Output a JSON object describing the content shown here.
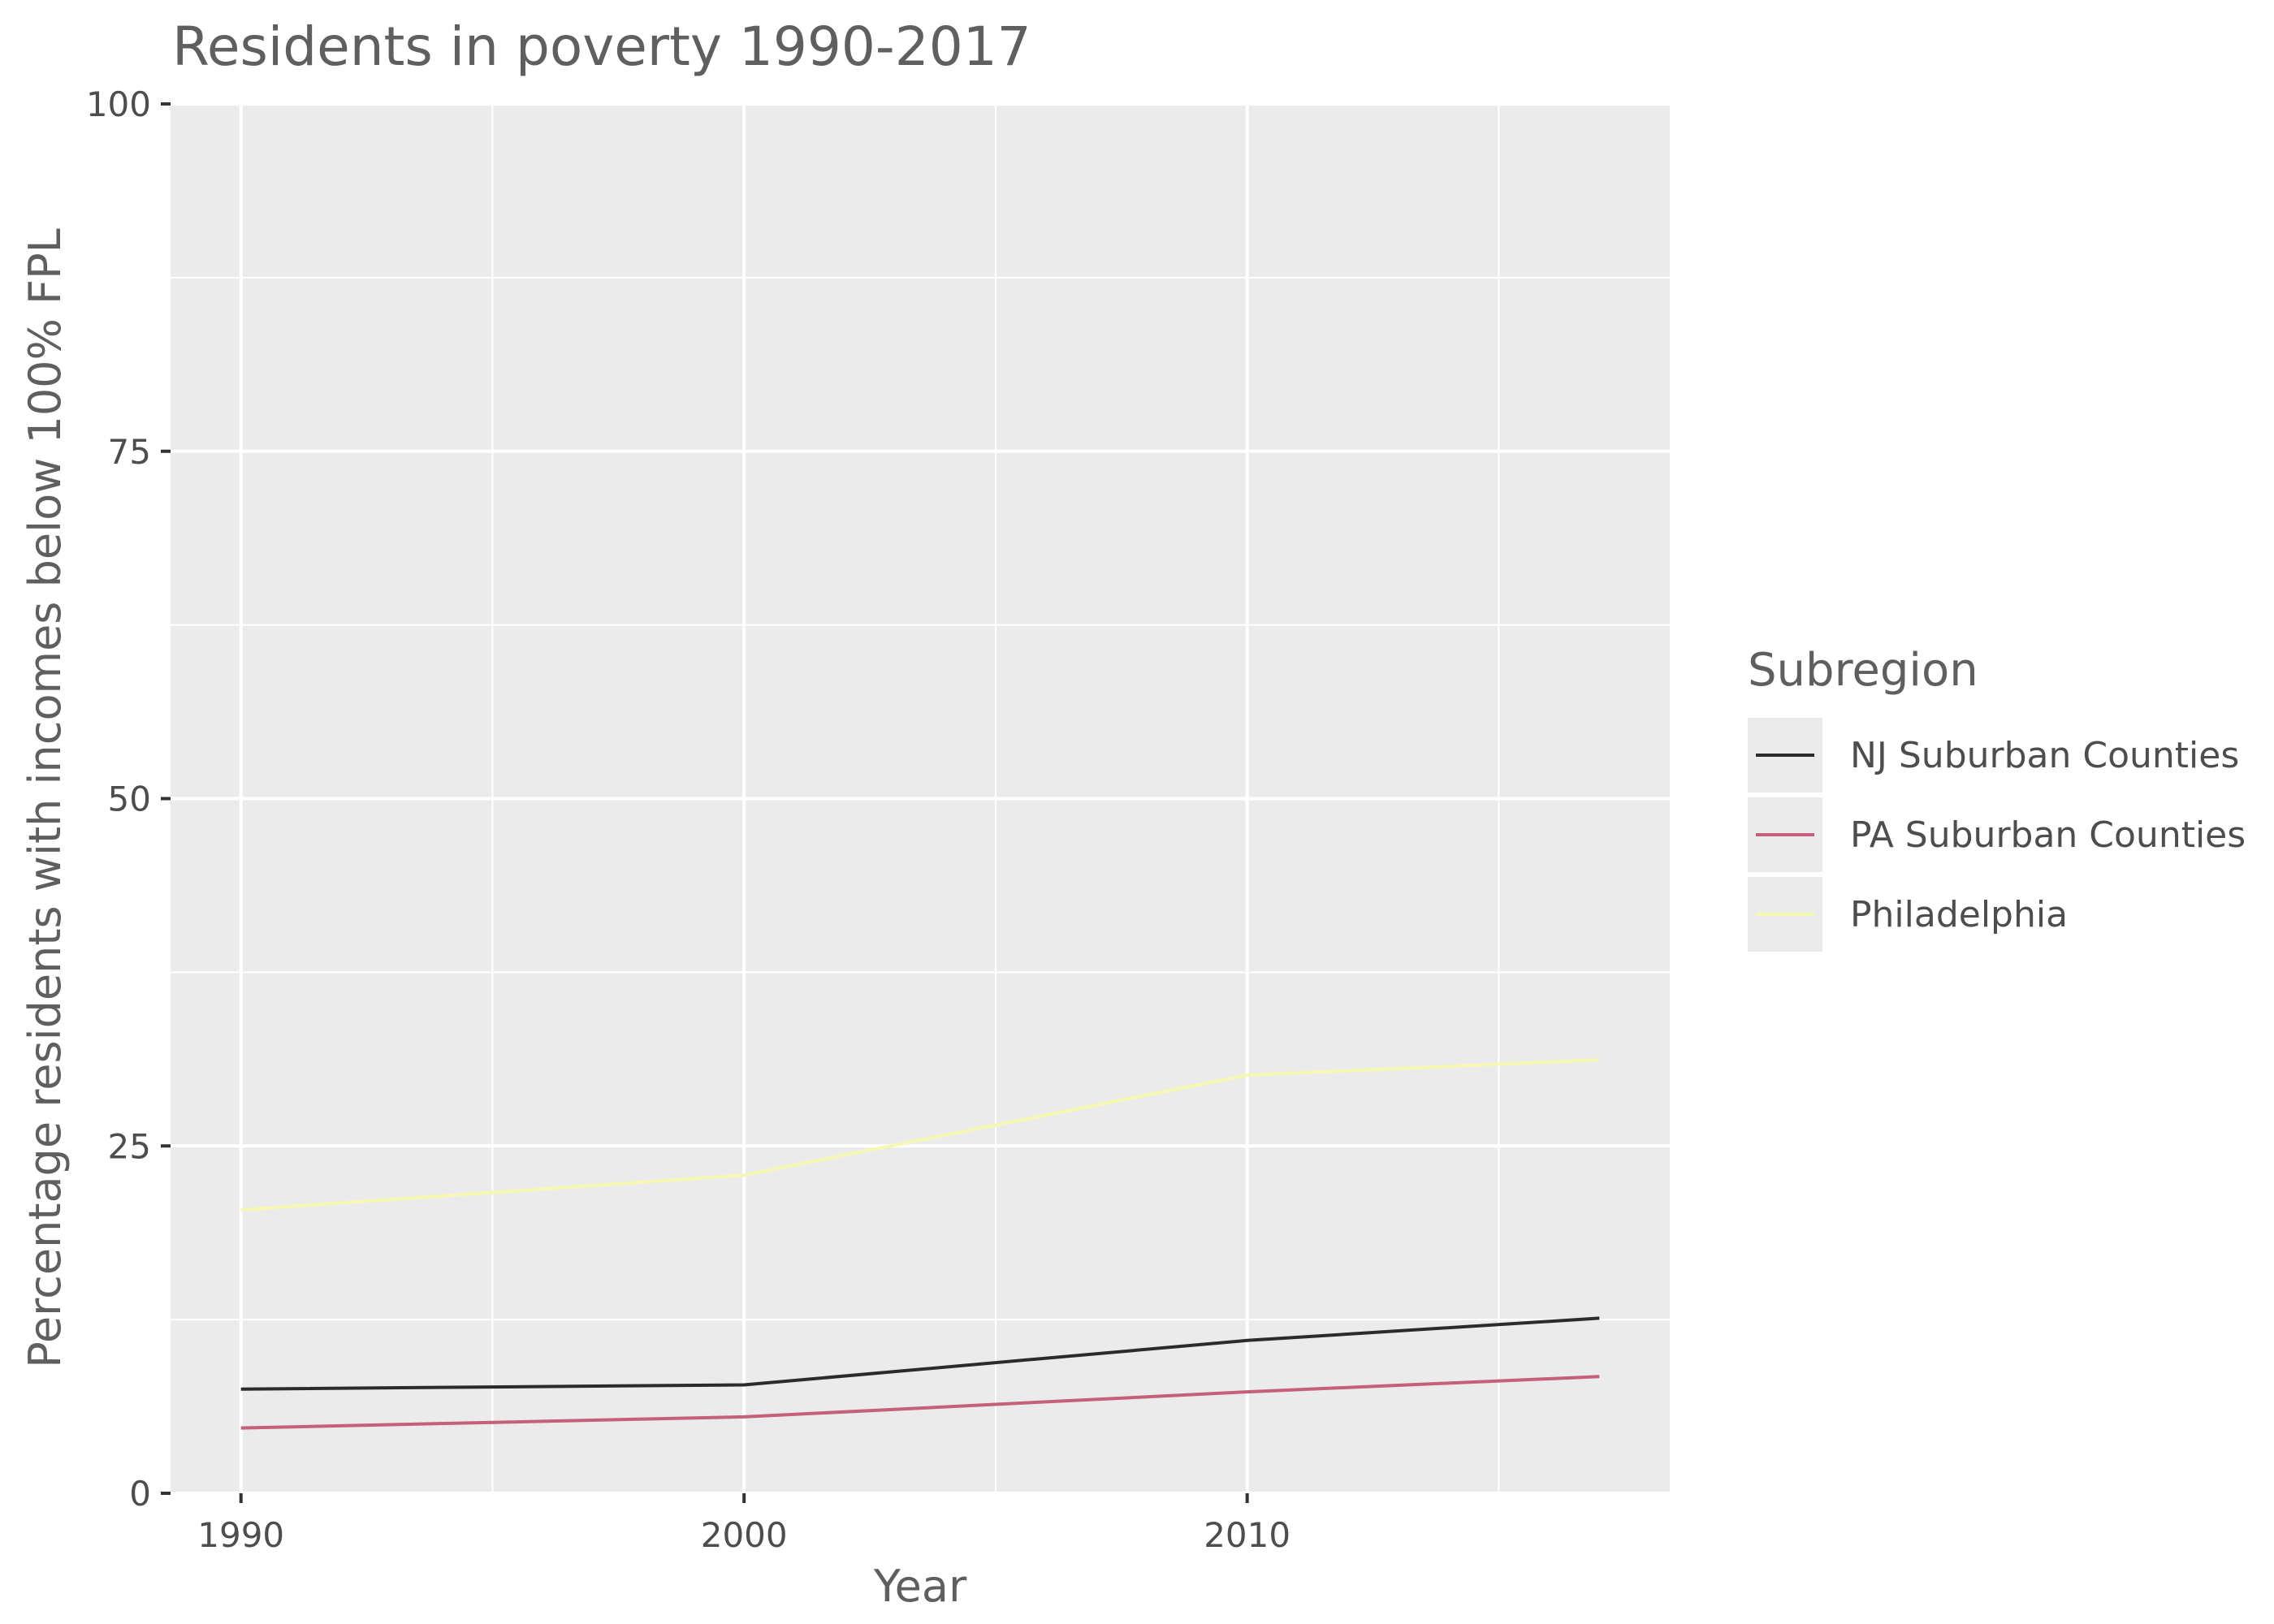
{
  "chart_data": {
    "type": "line",
    "title": "Residents in poverty 1990-2017",
    "xlabel": "Year",
    "ylabel": "Percentage residents with incomes below 100% FPL",
    "xlim": [
      1988.6,
      2018.4
    ],
    "ylim": [
      0,
      100
    ],
    "x_ticks": [
      1990,
      2000,
      2010
    ],
    "x_minor": [
      1995,
      2005,
      2015
    ],
    "y_ticks": [
      0,
      25,
      50,
      75,
      100
    ],
    "y_minor": [
      12.5,
      37.5,
      62.5,
      87.5
    ],
    "x": [
      1990,
      2000,
      2010,
      2017
    ],
    "series": [
      {
        "name": "NJ Suburban Counties",
        "color": "#2b2b2b",
        "values": [
          7.5,
          7.8,
          11.0,
          12.6
        ]
      },
      {
        "name": "PA Suburban Counties",
        "color": "#c4607a",
        "values": [
          4.7,
          5.5,
          7.3,
          8.4
        ]
      },
      {
        "name": "Philadelphia",
        "color": "#f7f7b4",
        "values": [
          20.4,
          22.9,
          30.1,
          31.2
        ]
      }
    ],
    "legend": {
      "title": "Subregion",
      "position": "right"
    },
    "grid": true,
    "panel_background": "#ebebeb",
    "grid_color": "#ffffff"
  }
}
